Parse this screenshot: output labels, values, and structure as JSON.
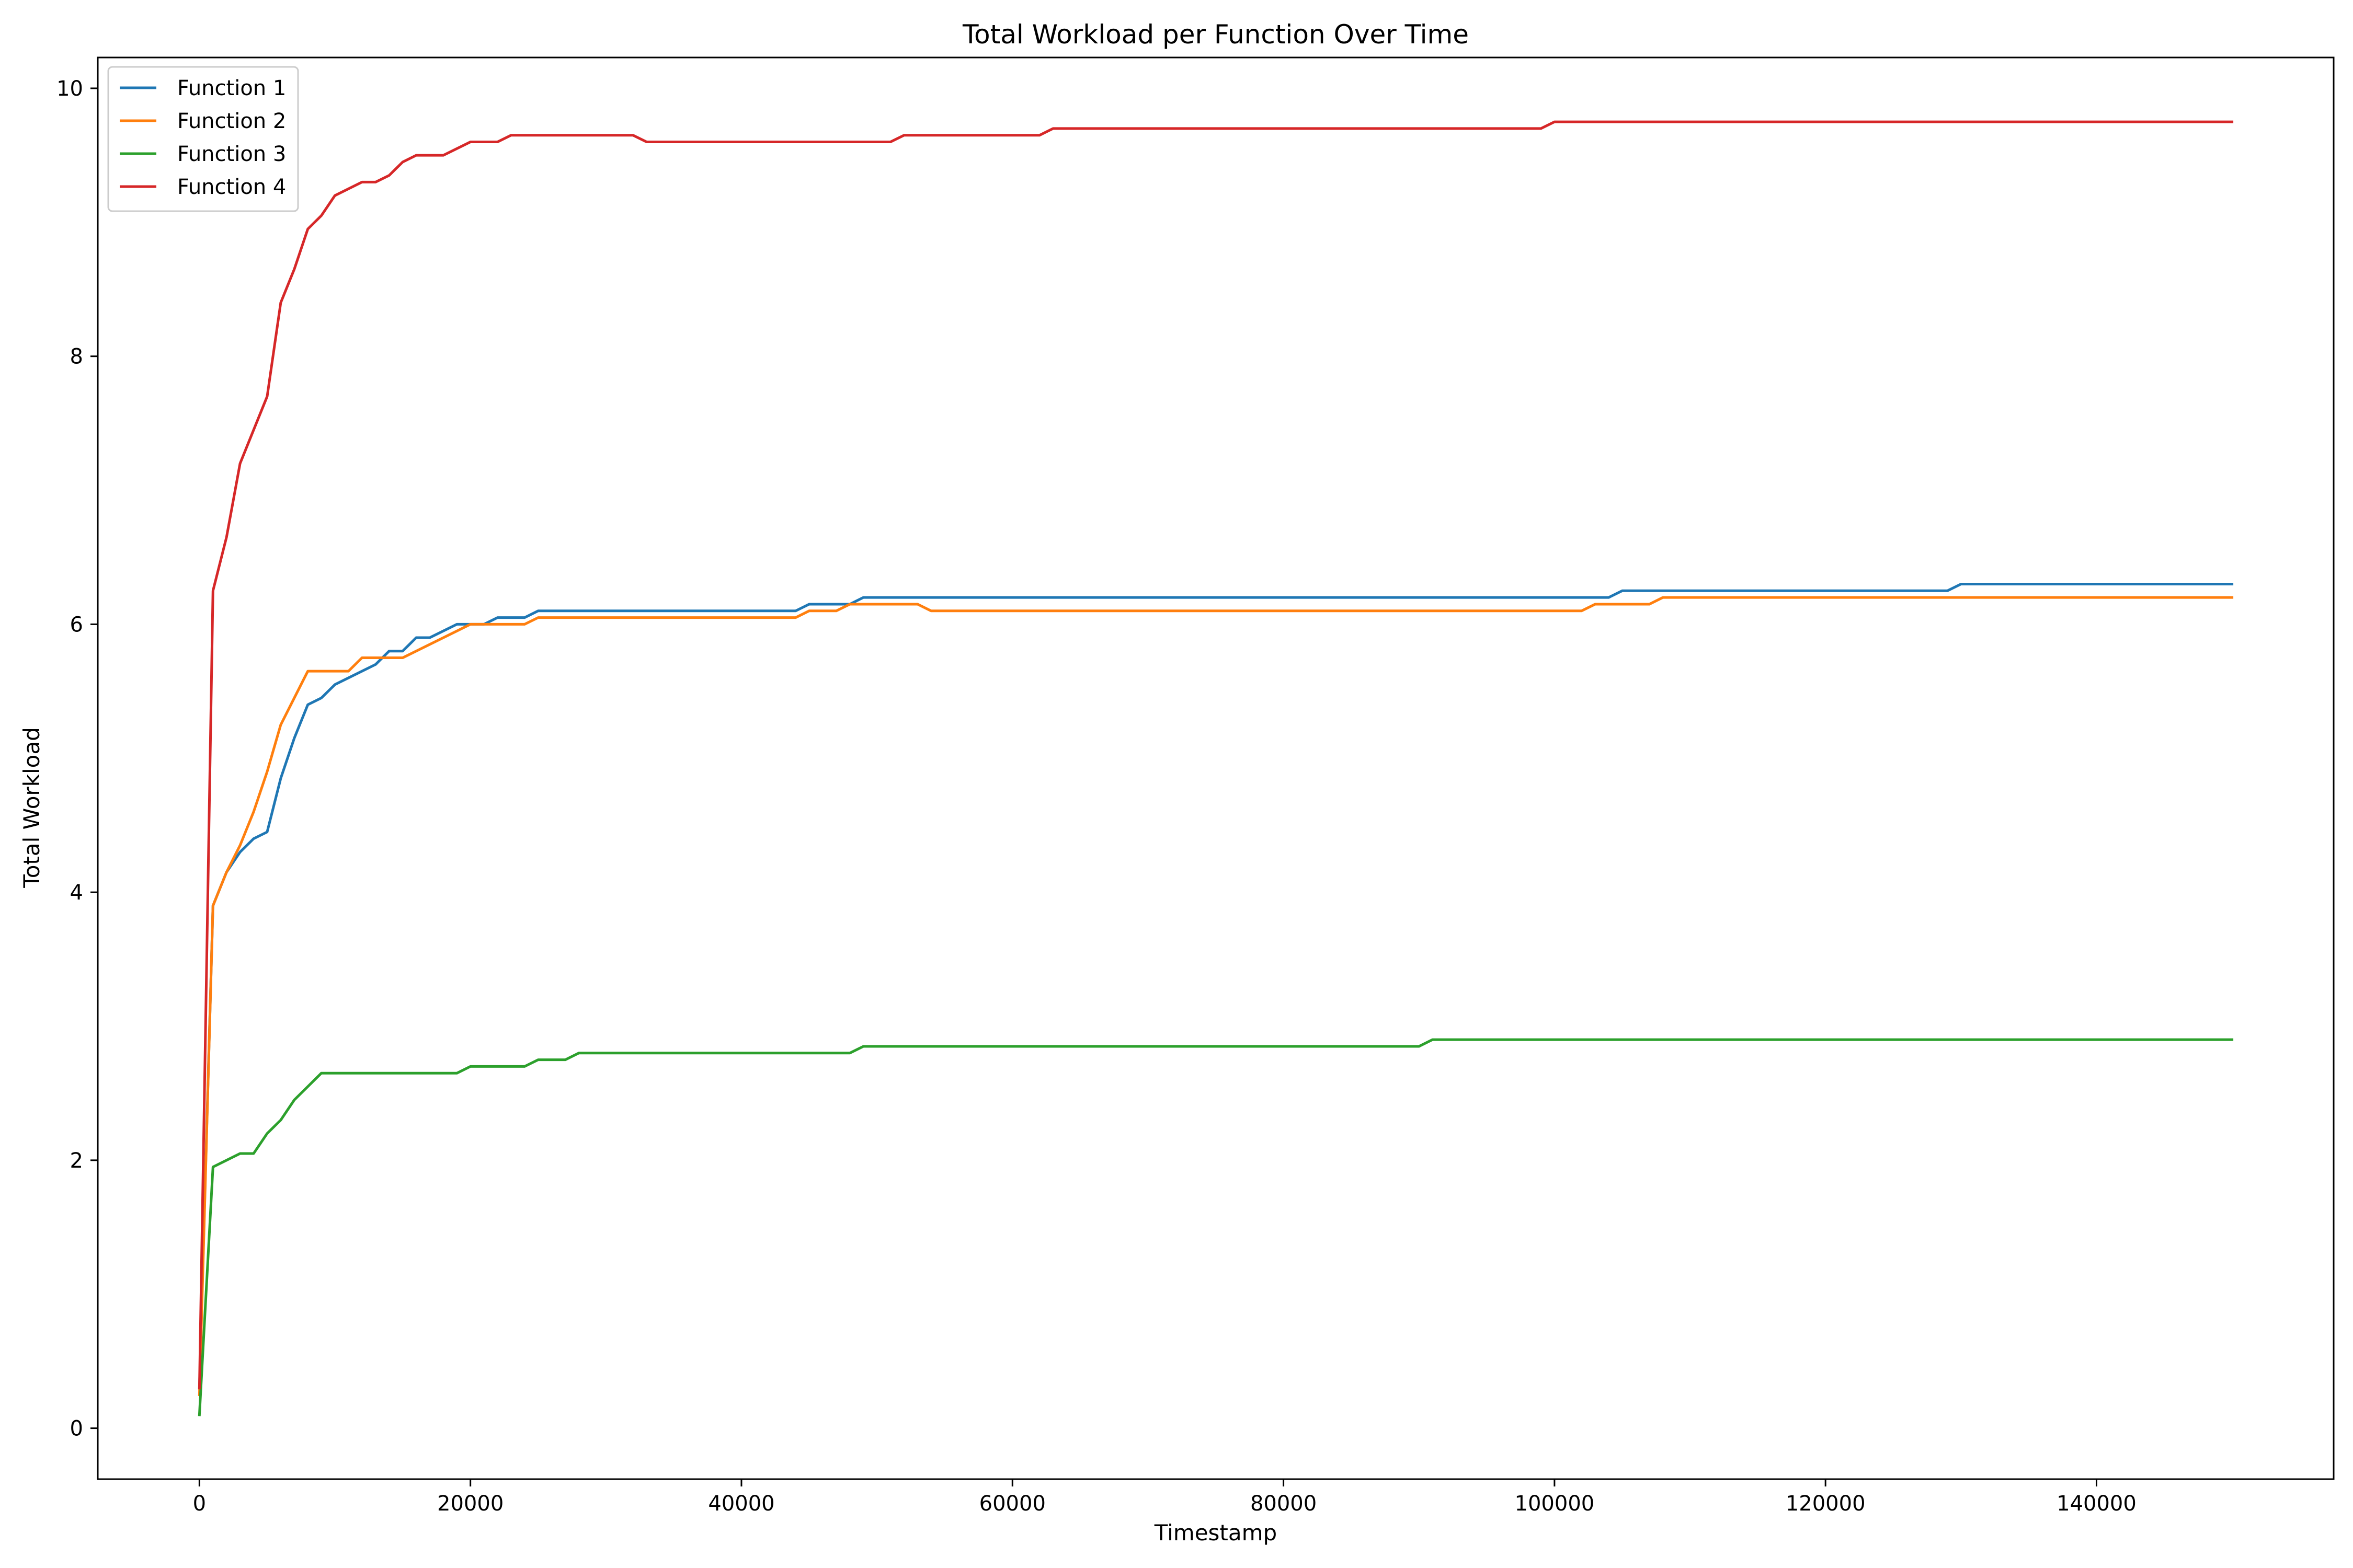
{
  "chart_data": {
    "type": "line",
    "title": "Total Workload per Function Over Time",
    "xlabel": "Timestamp",
    "ylabel": "Total Workload",
    "xlim": [
      -7500,
      157500
    ],
    "ylim": [
      -0.38,
      10.23
    ],
    "xticks": [
      0,
      20000,
      40000,
      60000,
      80000,
      100000,
      120000,
      140000
    ],
    "xtick_labels": [
      "0",
      "20000",
      "40000",
      "60000",
      "80000",
      "100000",
      "120000",
      "140000"
    ],
    "yticks": [
      0,
      2,
      4,
      6,
      8,
      10
    ],
    "ytick_labels": [
      "0",
      "2",
      "4",
      "6",
      "8",
      "10"
    ],
    "grid": false,
    "legend_position": "top-left",
    "series": [
      {
        "name": "Function 1",
        "color": "#1f77b4",
        "points": [
          [
            0,
            0.3
          ],
          [
            1000,
            3.9
          ],
          [
            2000,
            4.15
          ],
          [
            3000,
            4.3
          ],
          [
            4000,
            4.4
          ],
          [
            5000,
            4.45
          ],
          [
            6000,
            4.85
          ],
          [
            7000,
            5.15
          ],
          [
            8000,
            5.4
          ],
          [
            9000,
            5.45
          ],
          [
            10000,
            5.55
          ],
          [
            12000,
            5.65
          ],
          [
            13000,
            5.7
          ],
          [
            14000,
            5.8
          ],
          [
            15000,
            5.8
          ],
          [
            16000,
            5.9
          ],
          [
            17000,
            5.9
          ],
          [
            19000,
            6.0
          ],
          [
            21000,
            6.0
          ],
          [
            22000,
            6.05
          ],
          [
            24000,
            6.05
          ],
          [
            25000,
            6.1
          ],
          [
            44000,
            6.1
          ],
          [
            45000,
            6.15
          ],
          [
            48000,
            6.15
          ],
          [
            49000,
            6.2
          ],
          [
            104000,
            6.2
          ],
          [
            105000,
            6.25
          ],
          [
            129000,
            6.25
          ],
          [
            130000,
            6.3
          ],
          [
            150000,
            6.3
          ]
        ]
      },
      {
        "name": "Function 2",
        "color": "#ff7f0e",
        "points": [
          [
            0,
            0.25
          ],
          [
            1000,
            3.9
          ],
          [
            2000,
            4.15
          ],
          [
            3000,
            4.35
          ],
          [
            4000,
            4.6
          ],
          [
            5000,
            4.9
          ],
          [
            6000,
            5.25
          ],
          [
            7000,
            5.45
          ],
          [
            8000,
            5.65
          ],
          [
            11000,
            5.65
          ],
          [
            12000,
            5.75
          ],
          [
            13000,
            5.75
          ],
          [
            14000,
            5.75
          ],
          [
            15000,
            5.75
          ],
          [
            17000,
            5.85
          ],
          [
            19000,
            5.95
          ],
          [
            20000,
            6.0
          ],
          [
            24000,
            6.0
          ],
          [
            25000,
            6.05
          ],
          [
            44000,
            6.05
          ],
          [
            45000,
            6.1
          ],
          [
            47000,
            6.1
          ],
          [
            48000,
            6.15
          ],
          [
            53000,
            6.15
          ],
          [
            54000,
            6.1
          ],
          [
            102000,
            6.1
          ],
          [
            103000,
            6.15
          ],
          [
            107000,
            6.15
          ],
          [
            108000,
            6.2
          ],
          [
            150000,
            6.2
          ]
        ]
      },
      {
        "name": "Function 3",
        "color": "#2ca02c",
        "points": [
          [
            0,
            0.1
          ],
          [
            1000,
            1.95
          ],
          [
            2000,
            2.0
          ],
          [
            3000,
            2.05
          ],
          [
            4000,
            2.05
          ],
          [
            5000,
            2.2
          ],
          [
            6000,
            2.3
          ],
          [
            7000,
            2.45
          ],
          [
            8000,
            2.55
          ],
          [
            9000,
            2.65
          ],
          [
            19000,
            2.65
          ],
          [
            20000,
            2.7
          ],
          [
            24000,
            2.7
          ],
          [
            25000,
            2.75
          ],
          [
            27000,
            2.75
          ],
          [
            28000,
            2.8
          ],
          [
            48000,
            2.8
          ],
          [
            49000,
            2.85
          ],
          [
            90000,
            2.85
          ],
          [
            91000,
            2.9
          ],
          [
            150000,
            2.9
          ]
        ]
      },
      {
        "name": "Function 4",
        "color": "#d62728",
        "points": [
          [
            0,
            0.3
          ],
          [
            1000,
            6.25
          ],
          [
            2000,
            6.65
          ],
          [
            3000,
            7.2
          ],
          [
            4000,
            7.45
          ],
          [
            5000,
            7.7
          ],
          [
            6000,
            8.4
          ],
          [
            7000,
            8.65
          ],
          [
            8000,
            8.95
          ],
          [
            9000,
            9.05
          ],
          [
            10000,
            9.2
          ],
          [
            11000,
            9.25
          ],
          [
            12000,
            9.3
          ],
          [
            13000,
            9.3
          ],
          [
            14000,
            9.35
          ],
          [
            15000,
            9.45
          ],
          [
            16000,
            9.5
          ],
          [
            18000,
            9.5
          ],
          [
            20000,
            9.6
          ],
          [
            22000,
            9.6
          ],
          [
            23000,
            9.65
          ],
          [
            32000,
            9.65
          ],
          [
            33000,
            9.6
          ],
          [
            51000,
            9.6
          ],
          [
            52000,
            9.65
          ],
          [
            62000,
            9.65
          ],
          [
            63000,
            9.7
          ],
          [
            99000,
            9.7
          ],
          [
            100000,
            9.75
          ],
          [
            150000,
            9.75
          ]
        ]
      }
    ]
  }
}
